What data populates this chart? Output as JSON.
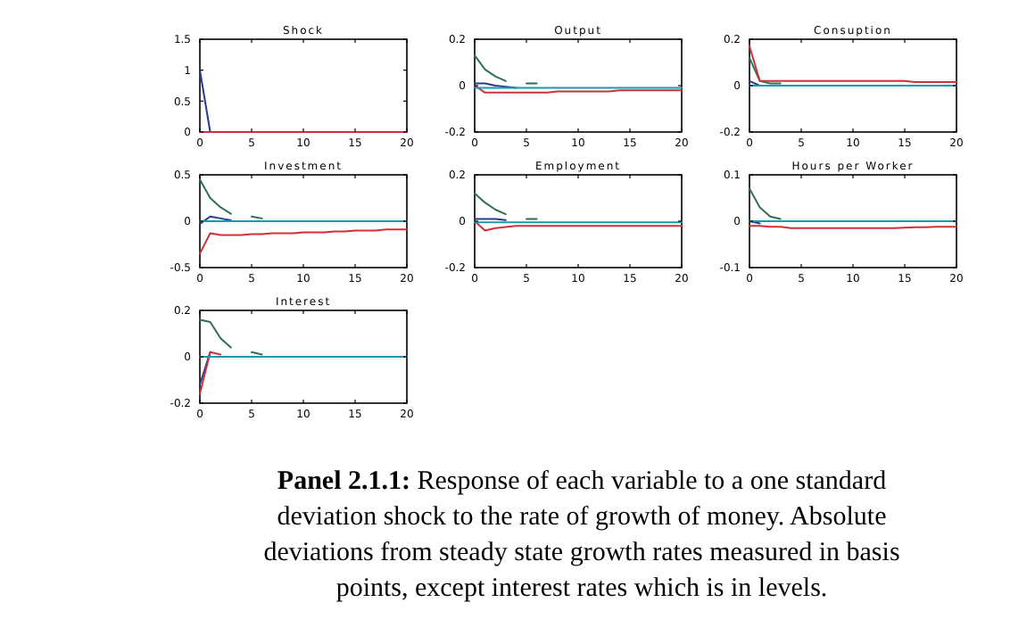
{
  "chart_data": [
    {
      "type": "line",
      "title": "Shock",
      "x": [
        0,
        1,
        2,
        3,
        4,
        5,
        6,
        7,
        8,
        9,
        10,
        11,
        12,
        13,
        14,
        15,
        16,
        17,
        18,
        19,
        20
      ],
      "xlim": [
        0,
        20
      ],
      "xticks": [
        0,
        5,
        10,
        15,
        20
      ],
      "ylim": [
        0,
        1.5
      ],
      "yticks": [
        0,
        0.5,
        1,
        1.5
      ],
      "series": [
        {
          "color": "#2b3a8c",
          "values": [
            1,
            0,
            null,
            null,
            null,
            null,
            null,
            null,
            null,
            null,
            null,
            null,
            null,
            null,
            null,
            null,
            null,
            null,
            null,
            null,
            null
          ]
        },
        {
          "color": "#d0303a",
          "values": [
            0,
            0,
            0,
            0,
            0,
            0,
            0,
            0,
            0,
            0,
            0,
            0,
            0,
            0,
            0,
            0,
            0,
            0,
            0,
            0,
            0
          ]
        }
      ]
    },
    {
      "type": "line",
      "title": "Output",
      "x": [
        0,
        1,
        2,
        3,
        4,
        5,
        6,
        7,
        8,
        9,
        10,
        11,
        12,
        13,
        14,
        15,
        16,
        17,
        18,
        19,
        20
      ],
      "xlim": [
        0,
        20
      ],
      "xticks": [
        0,
        5,
        10,
        15,
        20
      ],
      "ylim": [
        -0.2,
        0.2
      ],
      "yticks": [
        -0.2,
        0,
        0.2
      ],
      "series": [
        {
          "color": "#2f6f5a",
          "values": [
            0.13,
            0.07,
            0.04,
            0.02,
            null,
            0.01,
            0.01,
            null,
            null,
            null,
            null,
            null,
            null,
            null,
            null,
            null,
            null,
            null,
            null,
            null,
            null
          ]
        },
        {
          "color": "#2b3a8c",
          "values": [
            0.01,
            0.01,
            0,
            -0.005,
            -0.01,
            null,
            null,
            null,
            null,
            null,
            null,
            null,
            null,
            null,
            null,
            null,
            null,
            null,
            null,
            null,
            null
          ]
        },
        {
          "color": "#d0303a",
          "values": [
            0,
            -0.03,
            -0.03,
            -0.03,
            -0.03,
            -0.03,
            -0.03,
            -0.03,
            -0.025,
            -0.025,
            -0.025,
            -0.025,
            -0.025,
            -0.025,
            -0.02,
            -0.02,
            -0.02,
            -0.02,
            -0.02,
            -0.02,
            -0.02
          ]
        },
        {
          "color": "#1a9ab0",
          "values": [
            -0.01,
            -0.01,
            -0.01,
            -0.01,
            -0.01,
            -0.01,
            -0.01,
            -0.01,
            -0.01,
            -0.01,
            -0.01,
            -0.01,
            -0.01,
            -0.01,
            -0.01,
            -0.01,
            -0.01,
            -0.01,
            -0.01,
            -0.01,
            -0.01
          ]
        }
      ]
    },
    {
      "type": "line",
      "title": "Consuption",
      "x": [
        0,
        1,
        2,
        3,
        4,
        5,
        6,
        7,
        8,
        9,
        10,
        11,
        12,
        13,
        14,
        15,
        16,
        17,
        18,
        19,
        20
      ],
      "xlim": [
        0,
        20
      ],
      "xticks": [
        0,
        5,
        10,
        15,
        20
      ],
      "ylim": [
        -0.2,
        0.2
      ],
      "yticks": [
        -0.2,
        0,
        0.2
      ],
      "series": [
        {
          "color": "#2f6f5a",
          "values": [
            0.12,
            0.02,
            0.01,
            0.01,
            null,
            null,
            null,
            null,
            null,
            null,
            null,
            null,
            null,
            null,
            null,
            null,
            null,
            null,
            null,
            null,
            null
          ]
        },
        {
          "color": "#2b3a8c",
          "values": [
            0.02,
            0,
            null,
            null,
            null,
            null,
            null,
            null,
            null,
            null,
            null,
            null,
            null,
            null,
            null,
            null,
            null,
            null,
            null,
            null,
            null
          ]
        },
        {
          "color": "#d0303a",
          "values": [
            0.17,
            0.02,
            0.02,
            0.02,
            0.02,
            0.02,
            0.02,
            0.02,
            0.02,
            0.02,
            0.02,
            0.02,
            0.02,
            0.02,
            0.02,
            0.02,
            0.015,
            0.015,
            0.015,
            0.015,
            0.015
          ]
        },
        {
          "color": "#1a9ab0",
          "values": [
            0,
            0,
            0,
            0,
            0,
            0,
            0,
            0,
            0,
            0,
            0,
            0,
            0,
            0,
            0,
            0,
            0,
            0,
            0,
            0,
            0
          ]
        }
      ]
    },
    {
      "type": "line",
      "title": "Investment",
      "x": [
        0,
        1,
        2,
        3,
        4,
        5,
        6,
        7,
        8,
        9,
        10,
        11,
        12,
        13,
        14,
        15,
        16,
        17,
        18,
        19,
        20
      ],
      "xlim": [
        0,
        20
      ],
      "xticks": [
        0,
        5,
        10,
        15,
        20
      ],
      "ylim": [
        -0.5,
        0.5
      ],
      "yticks": [
        -0.5,
        0,
        0.5
      ],
      "series": [
        {
          "color": "#2f6f5a",
          "values": [
            0.45,
            0.25,
            0.15,
            0.08,
            null,
            0.05,
            0.03,
            null,
            null,
            null,
            null,
            null,
            null,
            null,
            null,
            null,
            null,
            null,
            null,
            null,
            null
          ]
        },
        {
          "color": "#2b3a8c",
          "values": [
            -0.03,
            0.05,
            0.03,
            0.01,
            null,
            null,
            null,
            null,
            null,
            null,
            null,
            null,
            null,
            null,
            null,
            null,
            null,
            null,
            null,
            null,
            null
          ]
        },
        {
          "color": "#d0303a",
          "values": [
            -0.35,
            -0.13,
            -0.15,
            -0.15,
            -0.15,
            -0.14,
            -0.14,
            -0.13,
            -0.13,
            -0.13,
            -0.12,
            -0.12,
            -0.12,
            -0.11,
            -0.11,
            -0.1,
            -0.1,
            -0.1,
            -0.09,
            -0.09,
            -0.09
          ]
        },
        {
          "color": "#1a9ab0",
          "values": [
            0,
            0,
            0,
            0,
            0,
            0,
            0,
            0,
            0,
            0,
            0,
            0,
            0,
            0,
            0,
            0,
            0,
            0,
            0,
            0,
            0
          ]
        }
      ]
    },
    {
      "type": "line",
      "title": "Employment",
      "x": [
        0,
        1,
        2,
        3,
        4,
        5,
        6,
        7,
        8,
        9,
        10,
        11,
        12,
        13,
        14,
        15,
        16,
        17,
        18,
        19,
        20
      ],
      "xlim": [
        0,
        20
      ],
      "xticks": [
        0,
        5,
        10,
        15,
        20
      ],
      "ylim": [
        -0.2,
        0.2
      ],
      "yticks": [
        -0.2,
        0,
        0.2
      ],
      "series": [
        {
          "color": "#2f6f5a",
          "values": [
            0.12,
            0.08,
            0.05,
            0.03,
            null,
            0.01,
            0.01,
            null,
            null,
            null,
            null,
            null,
            null,
            null,
            null,
            null,
            null,
            null,
            null,
            null,
            null
          ]
        },
        {
          "color": "#2b3a8c",
          "values": [
            0.01,
            0.01,
            0.01,
            0.005,
            null,
            null,
            null,
            null,
            null,
            null,
            null,
            null,
            null,
            null,
            null,
            null,
            null,
            null,
            null,
            null,
            null
          ]
        },
        {
          "color": "#d0303a",
          "values": [
            0,
            -0.04,
            -0.03,
            -0.025,
            -0.02,
            -0.02,
            -0.02,
            -0.02,
            -0.02,
            -0.02,
            -0.02,
            -0.02,
            -0.02,
            -0.02,
            -0.02,
            -0.02,
            -0.02,
            -0.02,
            -0.02,
            -0.02,
            -0.02
          ]
        },
        {
          "color": "#1a9ab0",
          "values": [
            -0.005,
            -0.005,
            -0.005,
            -0.005,
            -0.005,
            -0.005,
            -0.005,
            -0.005,
            -0.005,
            -0.005,
            -0.005,
            -0.005,
            -0.005,
            -0.005,
            -0.005,
            -0.005,
            -0.005,
            -0.005,
            -0.005,
            -0.005,
            -0.005
          ]
        }
      ]
    },
    {
      "type": "line",
      "title": "Hours per Worker",
      "x": [
        0,
        1,
        2,
        3,
        4,
        5,
        6,
        7,
        8,
        9,
        10,
        11,
        12,
        13,
        14,
        15,
        16,
        17,
        18,
        19,
        20
      ],
      "xlim": [
        0,
        20
      ],
      "xticks": [
        0,
        5,
        10,
        15,
        20
      ],
      "ylim": [
        -0.1,
        0.1
      ],
      "yticks": [
        -0.1,
        0,
        0.1
      ],
      "series": [
        {
          "color": "#2f6f5a",
          "values": [
            0.07,
            0.03,
            0.01,
            0.005,
            null,
            null,
            null,
            null,
            null,
            null,
            null,
            null,
            null,
            null,
            null,
            null,
            null,
            null,
            null,
            null,
            null
          ]
        },
        {
          "color": "#2b3a8c",
          "values": [
            0,
            -0.005,
            null,
            null,
            null,
            null,
            null,
            null,
            null,
            null,
            null,
            null,
            null,
            null,
            null,
            null,
            null,
            null,
            null,
            null,
            null
          ]
        },
        {
          "color": "#d0303a",
          "values": [
            -0.01,
            -0.01,
            -0.012,
            -0.012,
            -0.015,
            -0.015,
            -0.015,
            -0.015,
            -0.015,
            -0.015,
            -0.015,
            -0.015,
            -0.015,
            -0.015,
            -0.015,
            -0.014,
            -0.013,
            -0.013,
            -0.012,
            -0.012,
            -0.012
          ]
        },
        {
          "color": "#1a9ab0",
          "values": [
            0,
            0,
            0,
            0,
            0,
            0,
            0,
            0,
            0,
            0,
            0,
            0,
            0,
            0,
            0,
            0,
            0,
            0,
            0,
            0,
            0
          ]
        }
      ]
    },
    {
      "type": "line",
      "title": "Interest",
      "x": [
        0,
        1,
        2,
        3,
        4,
        5,
        6,
        7,
        8,
        9,
        10,
        11,
        12,
        13,
        14,
        15,
        16,
        17,
        18,
        19,
        20
      ],
      "xlim": [
        0,
        20
      ],
      "xticks": [
        0,
        5,
        10,
        15,
        20
      ],
      "ylim": [
        -0.2,
        0.2
      ],
      "yticks": [
        -0.2,
        0,
        0.2
      ],
      "series": [
        {
          "color": "#2f6f5a",
          "values": [
            0.16,
            0.15,
            0.08,
            0.04,
            null,
            0.02,
            0.01,
            null,
            null,
            null,
            null,
            null,
            null,
            null,
            null,
            null,
            null,
            null,
            null,
            null,
            null
          ]
        },
        {
          "color": "#2b3a8c",
          "values": [
            -0.12,
            0.02,
            null,
            null,
            null,
            null,
            null,
            null,
            null,
            null,
            null,
            null,
            null,
            null,
            null,
            null,
            null,
            null,
            null,
            null,
            null
          ]
        },
        {
          "color": "#d0303a",
          "values": [
            -0.16,
            0.02,
            0.01,
            null,
            null,
            null,
            null,
            null,
            null,
            null,
            null,
            null,
            null,
            null,
            null,
            null,
            null,
            null,
            null,
            null,
            null
          ]
        },
        {
          "color": "#1a9ab0",
          "values": [
            0,
            0,
            0,
            0,
            0,
            0,
            0,
            0,
            0,
            0,
            0,
            0,
            0,
            0,
            0,
            0,
            0,
            0,
            0,
            0,
            0
          ]
        }
      ],
      "annotations": [
        "Panel 2.1.1:",
        "Response of each variable to a one standard",
        "deviation shock to the rate of growth of money. Absolute",
        "deviations from steady state growth rates measured in basis",
        "points, except interest rates which is in levels."
      ]
    }
  ]
}
